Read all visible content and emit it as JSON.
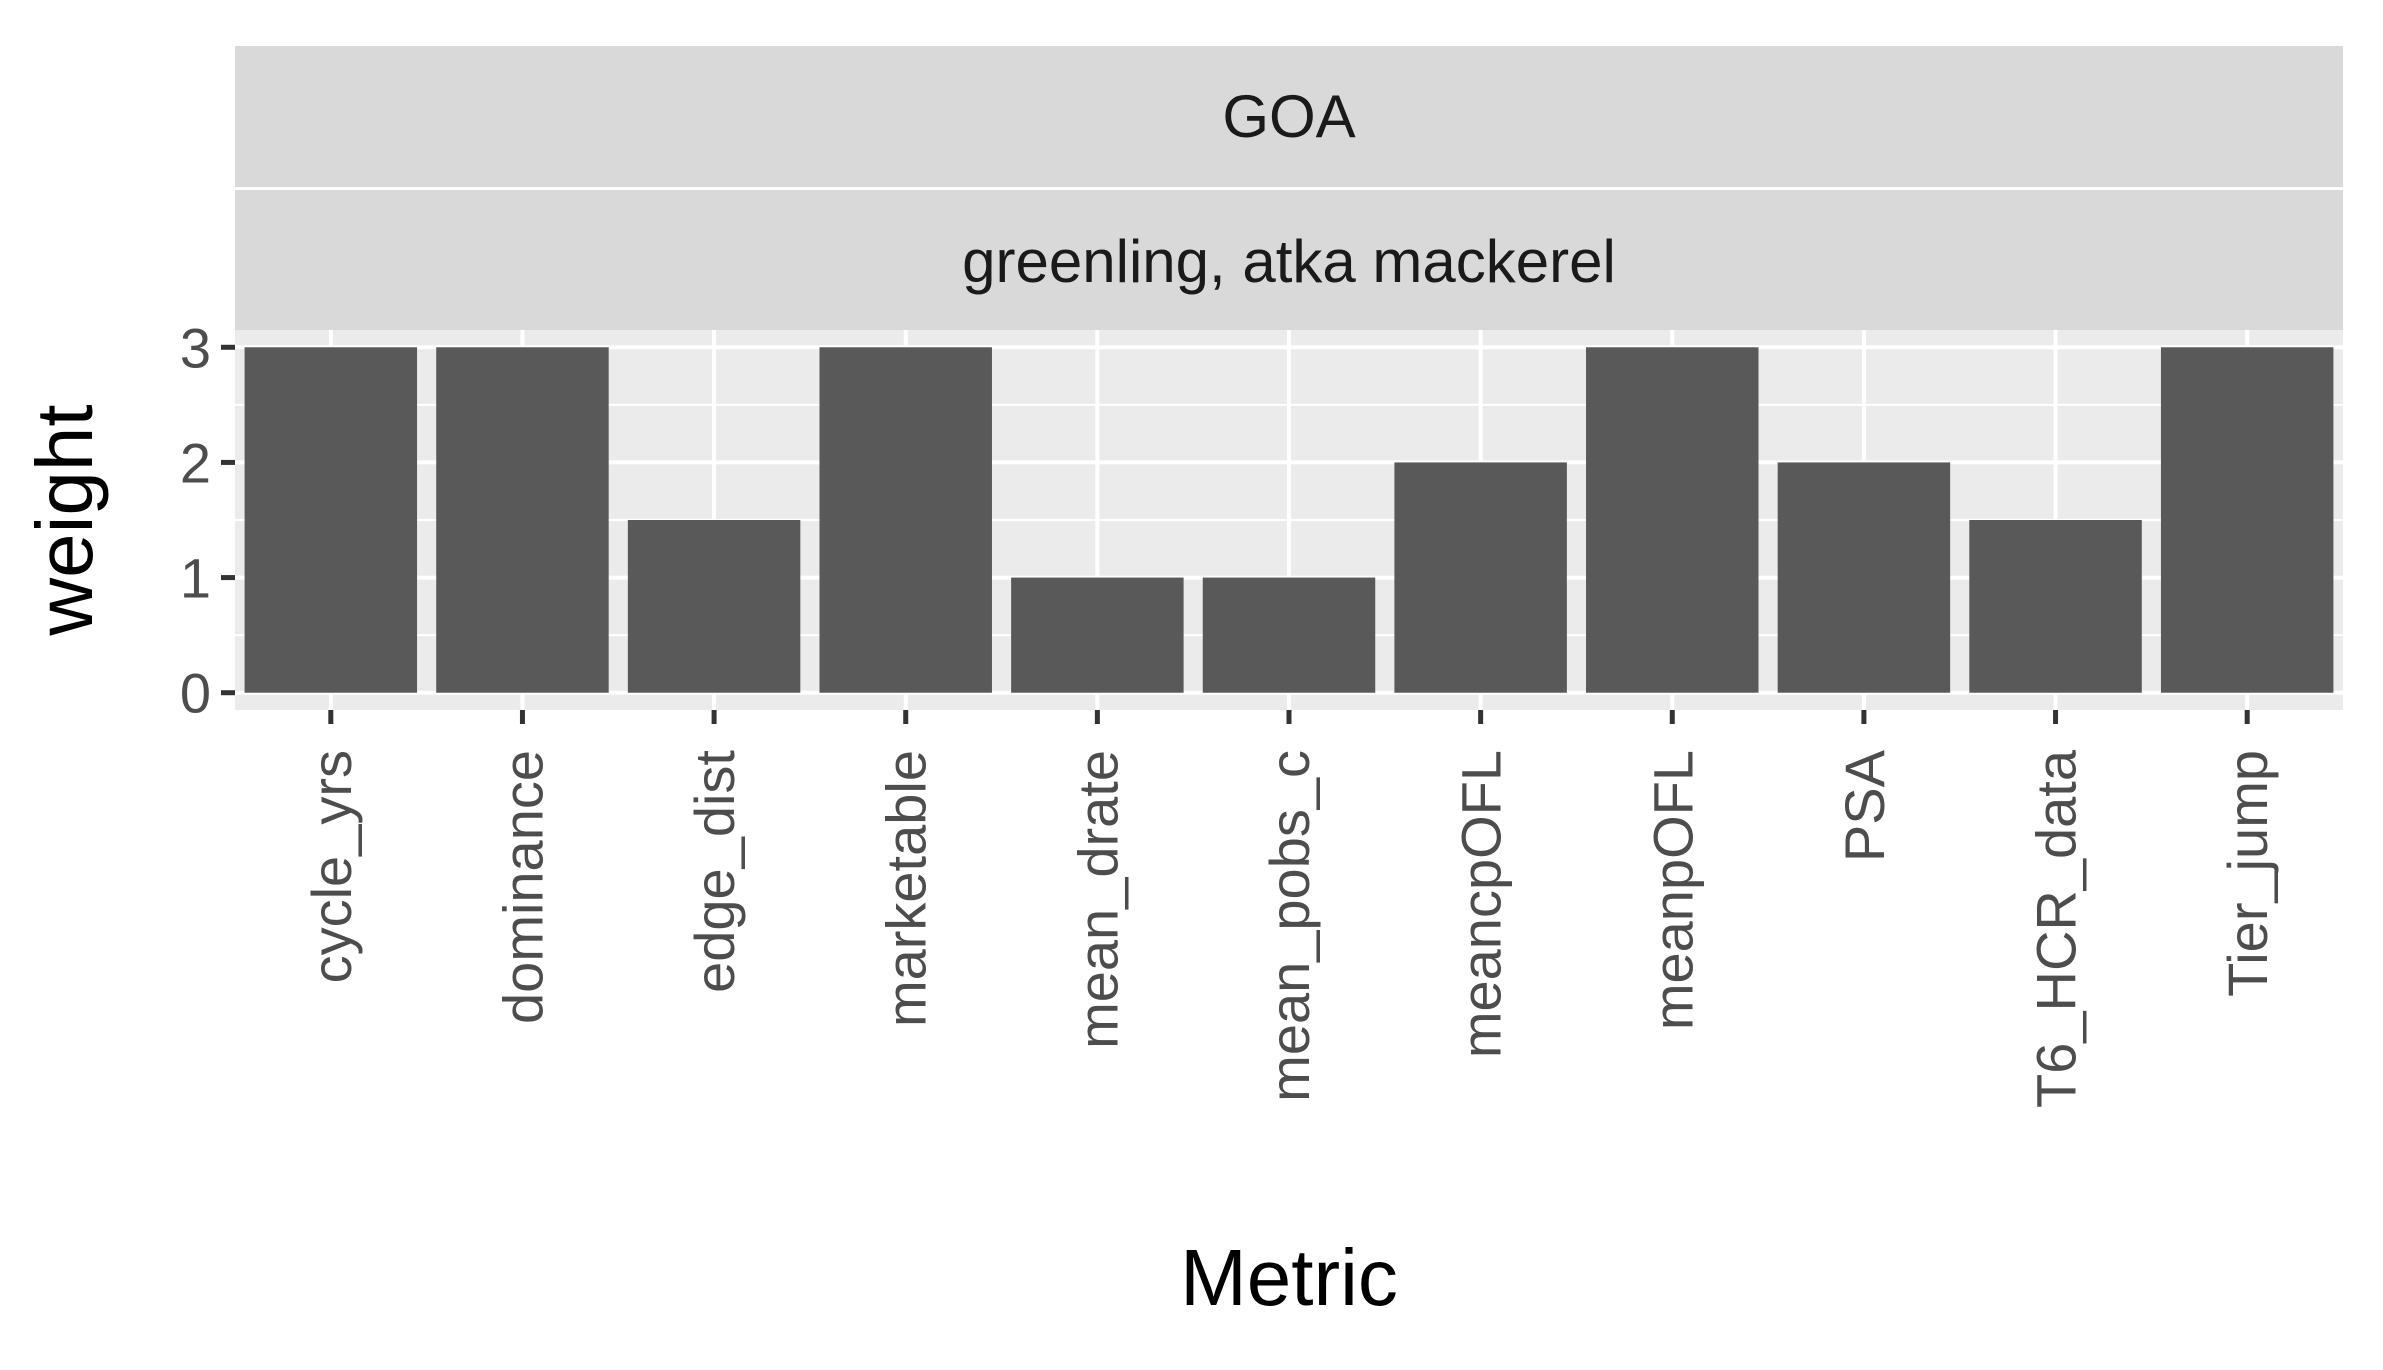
{
  "chart_data": {
    "type": "bar",
    "facet_strips": [
      "GOA",
      "greenling, atka mackerel"
    ],
    "categories": [
      "cycle_yrs",
      "dominance",
      "edge_dist",
      "marketable",
      "mean_drate",
      "mean_pobs_c",
      "meancpOFL",
      "meanpOFL",
      "PSA",
      "T6_HCR_data",
      "Tier_jump"
    ],
    "values": [
      3,
      3,
      1.5,
      3,
      1,
      1,
      2,
      3,
      2,
      1.5,
      3
    ],
    "xlabel": "Metric",
    "ylabel": "weight",
    "ylim": [
      -0.15,
      3.15
    ],
    "yticks": [
      0,
      1,
      2,
      3
    ],
    "grid": true,
    "colors": {
      "bar": "#595959",
      "panel": "#ebebeb",
      "strip": "#d9d9d9",
      "grid": "#ffffff"
    }
  }
}
